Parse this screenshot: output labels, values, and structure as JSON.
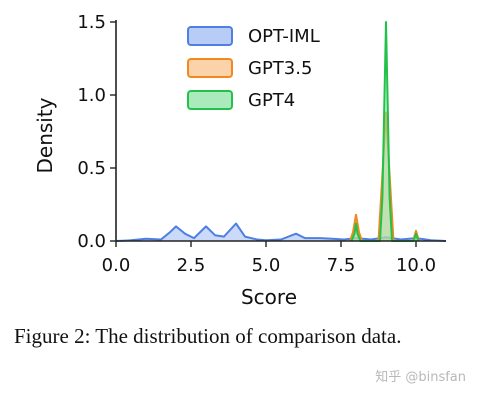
{
  "chart_data": {
    "type": "area",
    "xlabel": "Score",
    "ylabel": "Density",
    "xlim": [
      0.0,
      11.0
    ],
    "ylim": [
      0.0,
      1.5
    ],
    "xticks": [
      "0.0",
      "2.5",
      "5.0",
      "7.5",
      "10.0"
    ],
    "xtick_values": [
      0.0,
      2.5,
      5.0,
      7.5,
      10.0
    ],
    "yticks": [
      "0.0",
      "0.5",
      "1.0",
      "1.5"
    ],
    "ytick_values": [
      0.0,
      0.5,
      1.0,
      1.5
    ],
    "legend_position": "top-center",
    "series": [
      {
        "name": "OPT-IML",
        "color": "#4f7fe0",
        "fill": "#9fbcf2",
        "x": [
          0.0,
          0.5,
          1.0,
          1.5,
          1.8,
          2.0,
          2.3,
          2.6,
          3.0,
          3.3,
          3.6,
          4.0,
          4.3,
          4.7,
          5.0,
          5.5,
          6.0,
          6.3,
          6.8,
          7.2,
          7.6,
          8.0,
          8.5,
          9.0,
          9.5,
          10.0,
          10.5,
          11.0
        ],
        "y": [
          0.0,
          0.005,
          0.015,
          0.01,
          0.06,
          0.1,
          0.05,
          0.02,
          0.1,
          0.04,
          0.03,
          0.12,
          0.03,
          0.01,
          0.005,
          0.01,
          0.05,
          0.02,
          0.02,
          0.015,
          0.01,
          0.02,
          0.01,
          0.025,
          0.01,
          0.02,
          0.005,
          0.0
        ]
      },
      {
        "name": "GPT3.5",
        "color": "#f08a1e",
        "fill": "#f9c38d",
        "x": [
          7.8,
          7.9,
          8.0,
          8.1,
          8.2,
          8.75,
          8.85,
          9.0,
          9.15,
          9.25,
          9.9,
          10.0,
          10.1
        ],
        "y": [
          0.0,
          0.06,
          0.18,
          0.06,
          0.0,
          0.0,
          0.35,
          0.88,
          0.35,
          0.0,
          0.0,
          0.07,
          0.0
        ]
      },
      {
        "name": "GPT4",
        "color": "#22c24a",
        "fill": "#8fe3a5",
        "x": [
          7.85,
          7.95,
          8.0,
          8.05,
          8.15,
          8.8,
          8.88,
          9.0,
          9.12,
          9.2,
          9.92,
          10.0,
          10.08
        ],
        "y": [
          0.0,
          0.05,
          0.12,
          0.05,
          0.0,
          0.0,
          0.3,
          1.5,
          0.3,
          0.0,
          0.0,
          0.05,
          0.0
        ]
      }
    ]
  },
  "caption": "Figure 2: The distribution of comparison data.",
  "watermark": "知乎 @binsfan"
}
